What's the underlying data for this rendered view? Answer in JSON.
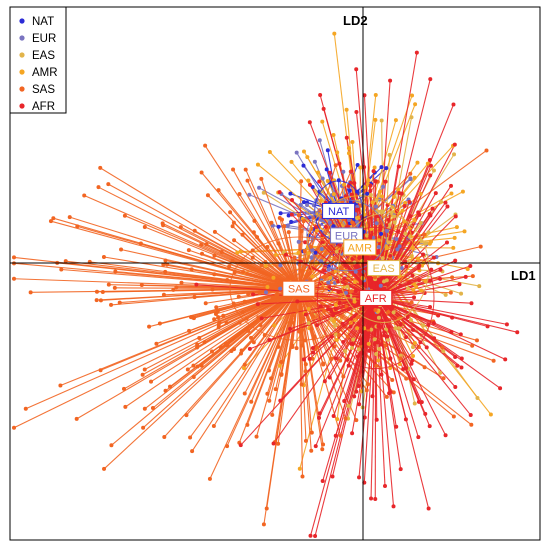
{
  "chart_data": {
    "type": "scatter",
    "xlabel": "LD1",
    "ylabel": "LD2",
    "xlim": [
      -6.5,
      3.5
    ],
    "ylim": [
      -5.0,
      4.8
    ],
    "grid": false,
    "legend_position": "top-left",
    "series": [
      {
        "name": "NAT",
        "color": "#2b2bd6",
        "centroid": [
          -0.3,
          1.05
        ],
        "spread": [
          0.55,
          0.55
        ],
        "n": 45,
        "ellipse": [
          0.45,
          0.55
        ]
      },
      {
        "name": "EUR",
        "color": "#7a74c0",
        "centroid": [
          -0.15,
          0.6
        ],
        "spread": [
          0.8,
          0.7
        ],
        "n": 90,
        "ellipse": [
          0.75,
          0.65
        ]
      },
      {
        "name": "EAS",
        "color": "#e2b44a",
        "centroid": [
          0.55,
          0.0
        ],
        "spread": [
          0.65,
          1.2
        ],
        "n": 110,
        "ellipse": [
          0.85,
          1.0
        ]
      },
      {
        "name": "AMR",
        "color": "#f5a623",
        "centroid": [
          0.1,
          0.38
        ],
        "spread": [
          1.1,
          1.2
        ],
        "n": 150,
        "ellipse": [
          1.0,
          0.95
        ]
      },
      {
        "name": "SAS",
        "color": "#f26522",
        "centroid": [
          -1.05,
          -0.38
        ],
        "spread": [
          1.8,
          1.3
        ],
        "n": 320,
        "ellipse": [
          1.3,
          0.95
        ]
      },
      {
        "name": "AFR",
        "color": "#e8262a",
        "centroid": [
          0.4,
          -0.55
        ],
        "spread": [
          0.9,
          1.55
        ],
        "n": 300,
        "ellipse": [
          1.1,
          1.3
        ]
      }
    ]
  }
}
